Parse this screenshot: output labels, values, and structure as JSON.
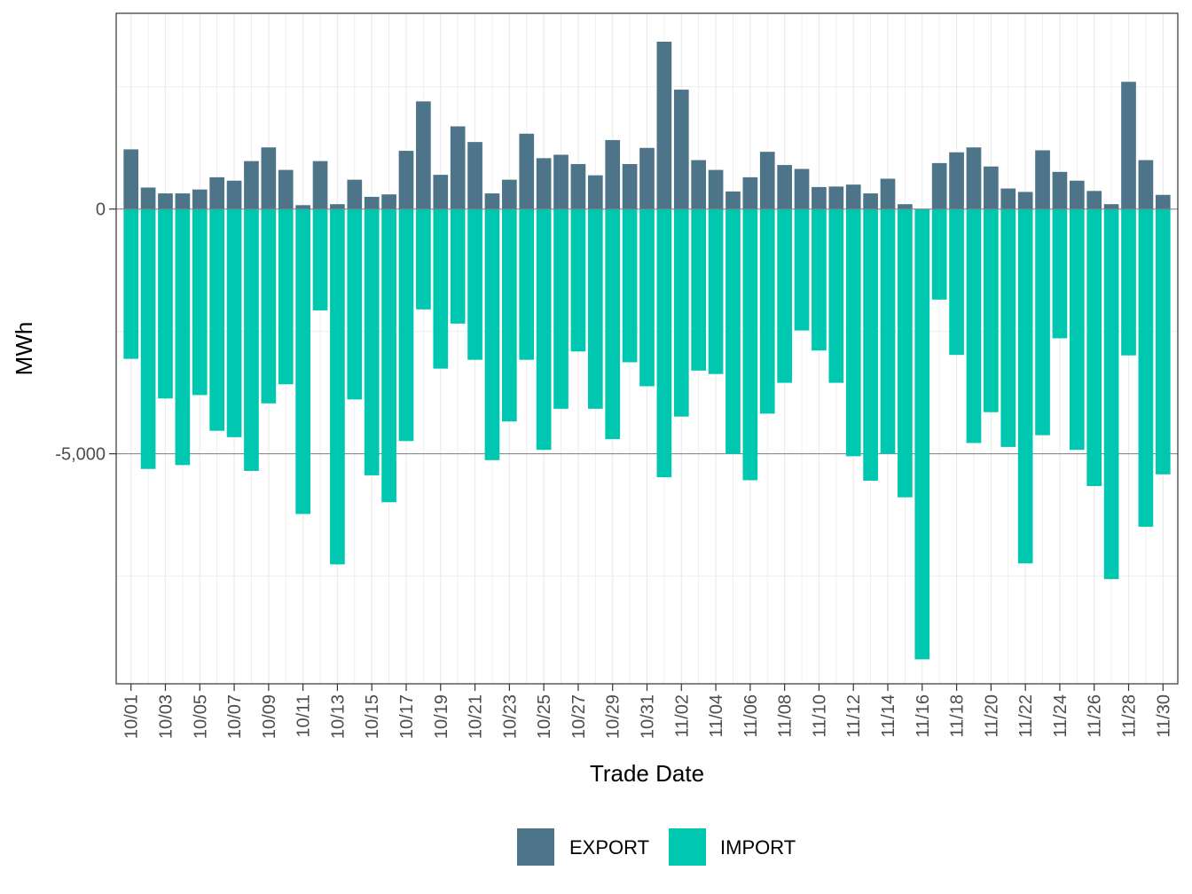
{
  "colors": {
    "export": "#4e7489",
    "import": "#00c8b0",
    "grid": "#ebebeb",
    "zero_line": "#808080",
    "panel_border": "#333333"
  },
  "chart_data": {
    "type": "bar",
    "stacked": true,
    "xlabel": "Trade Date",
    "ylabel": "MWh",
    "ylim": [
      -9700,
      4000
    ],
    "y_ticks": [
      0,
      -5000
    ],
    "y_tick_labels": [
      "0",
      "-5,000"
    ],
    "y_minor_ticks": [
      2500,
      -2500,
      -7500
    ],
    "categories": [
      "10/01",
      "10/02",
      "10/03",
      "10/04",
      "10/05",
      "10/06",
      "10/07",
      "10/08",
      "10/09",
      "10/10",
      "10/11",
      "10/12",
      "10/13",
      "10/14",
      "10/15",
      "10/16",
      "10/17",
      "10/18",
      "10/19",
      "10/20",
      "10/21",
      "10/22",
      "10/23",
      "10/24",
      "10/25",
      "10/26",
      "10/27",
      "10/28",
      "10/29",
      "10/30",
      "10/31",
      "11/01",
      "11/02",
      "11/03",
      "11/04",
      "11/05",
      "11/06",
      "11/07",
      "11/08",
      "11/09",
      "11/10",
      "11/11",
      "11/12",
      "11/13",
      "11/14",
      "11/15",
      "11/16",
      "11/17",
      "11/18",
      "11/19",
      "11/20",
      "11/21",
      "11/22",
      "11/23",
      "11/24",
      "11/25",
      "11/26",
      "11/27",
      "11/28",
      "11/29",
      "11/30"
    ],
    "x_tick_labels": [
      "10/01",
      "10/03",
      "10/05",
      "10/07",
      "10/09",
      "10/11",
      "10/13",
      "10/15",
      "10/17",
      "10/19",
      "10/21",
      "10/23",
      "10/25",
      "10/27",
      "10/29",
      "10/31",
      "11/02",
      "11/04",
      "11/06",
      "11/08",
      "11/10",
      "11/12",
      "11/14",
      "11/16",
      "11/18",
      "11/20",
      "11/22",
      "11/24",
      "11/26",
      "11/28",
      "11/30"
    ],
    "series": [
      {
        "name": "EXPORT",
        "values": [
          1220,
          440,
          320,
          320,
          400,
          650,
          580,
          980,
          1260,
          800,
          80,
          980,
          100,
          600,
          250,
          300,
          1190,
          2200,
          700,
          1690,
          1370,
          320,
          600,
          1540,
          1040,
          1110,
          920,
          690,
          1410,
          920,
          1250,
          3420,
          2440,
          1000,
          800,
          360,
          650,
          1170,
          900,
          820,
          450,
          460,
          500,
          320,
          620,
          100,
          0,
          940,
          1160,
          1260,
          870,
          420,
          350,
          1200,
          760,
          580,
          370,
          100,
          2600,
          1000,
          290
        ]
      },
      {
        "name": "IMPORT",
        "values": [
          -3060,
          -5310,
          -3870,
          -5230,
          -3800,
          -4530,
          -4660,
          -5350,
          -3970,
          -3580,
          -6230,
          -2070,
          -7260,
          -3890,
          -5440,
          -5990,
          -4740,
          -2050,
          -3260,
          -2340,
          -3080,
          -5130,
          -4340,
          -3080,
          -4920,
          -4080,
          -2910,
          -4080,
          -4700,
          -3130,
          -3620,
          -5480,
          -4240,
          -3300,
          -3370,
          -5000,
          -5540,
          -4180,
          -3550,
          -2480,
          -2890,
          -3550,
          -5050,
          -5550,
          -5000,
          -5890,
          -9200,
          -1850,
          -2980,
          -4780,
          -4150,
          -4860,
          -7240,
          -4620,
          -2640,
          -4920,
          -5660,
          -7560,
          -2990,
          -6490,
          -5420
        ]
      }
    ],
    "legend": {
      "position": "bottom",
      "entries": [
        "EXPORT",
        "IMPORT"
      ]
    }
  }
}
